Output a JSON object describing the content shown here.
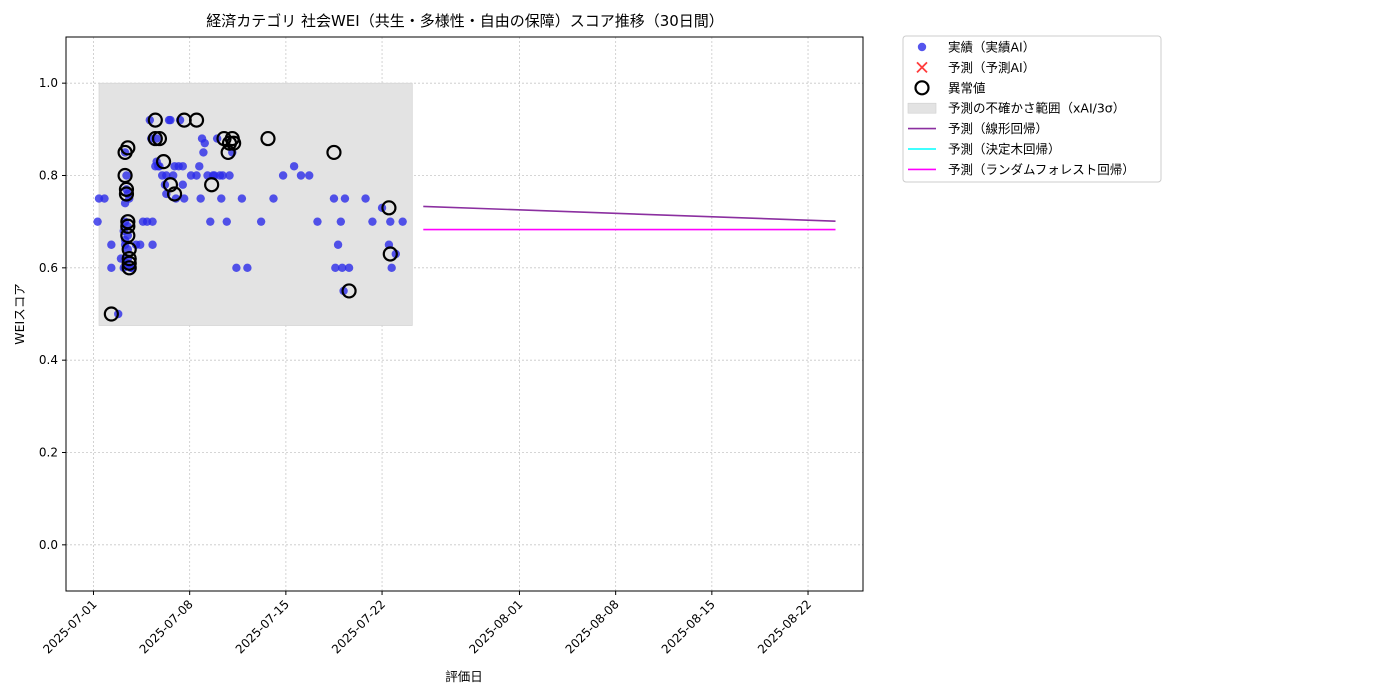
{
  "chart_data": {
    "type": "scatter",
    "title": "経済カテゴリ 社会WEI（共生・多様性・自由の保障）スコア推移（30日間）",
    "xlabel": "評価日",
    "ylabel": "WEIスコア",
    "xlim": [
      "2025-06-29",
      "2025-08-26"
    ],
    "ylim": [
      -0.1,
      1.1
    ],
    "yticks": [
      0.0,
      0.2,
      0.4,
      0.6,
      0.8,
      1.0
    ],
    "ytick_labels": [
      "0.0",
      "0.2",
      "0.4",
      "0.6",
      "0.8",
      "1.0"
    ],
    "xticks": [
      "2025-07-01",
      "2025-07-08",
      "2025-07-15",
      "2025-07-22",
      "2025-08-01",
      "2025-08-08",
      "2025-08-15",
      "2025-08-22"
    ],
    "grid": true,
    "legend_position": "outside-top-right",
    "legend": [
      {
        "label": "実績（実績AI）",
        "kind": "dot",
        "color": "#2b2be8"
      },
      {
        "label": "予測（予測AI）",
        "kind": "x",
        "color": "#ff3b3b"
      },
      {
        "label": "異常値",
        "kind": "ring",
        "color": "#000000"
      },
      {
        "label": "予測の不確かさ範囲（xAI/3σ）",
        "kind": "band",
        "color": "#d9d9d9"
      },
      {
        "label": "予測（線形回帰）",
        "kind": "line",
        "color": "#8b2fa0"
      },
      {
        "label": "予測（決定木回帰）",
        "kind": "line",
        "color": "#00ffff"
      },
      {
        "label": "予測（ランダムフォレスト回帰）",
        "kind": "line",
        "color": "#ff00ff"
      }
    ],
    "uncertainty_band": {
      "x_start": "2025-07-01.4",
      "x_end": "2025-07-24.2",
      "y_low": 0.475,
      "y_high": 1.0
    },
    "series": [
      {
        "name": "実績（実績AI）",
        "color": "#2b2be8",
        "x": [
          1.3,
          1.4,
          1.8,
          2.3,
          2.3,
          2.8,
          3.0,
          3.2,
          3.2,
          3.3,
          3.3,
          3.3,
          3.3,
          3.3,
          3.4,
          3.4,
          3.4,
          3.5,
          3.5,
          3.5,
          3.5,
          3.5,
          3.6,
          3.7,
          3.8,
          4.1,
          4.4,
          4.6,
          4.9,
          5.1,
          5.2,
          5.3,
          5.3,
          5.5,
          5.6,
          5.6,
          5.7,
          5.8,
          6.0,
          6.2,
          6.3,
          6.3,
          6.5,
          6.6,
          6.8,
          6.9,
          7.0,
          7.2,
          7.3,
          7.5,
          7.5,
          7.6,
          8.1,
          8.5,
          8.7,
          8.8,
          8.9,
          9.0,
          9.1,
          9.3,
          9.5,
          9.7,
          9.8,
          10.0,
          10.2,
          10.3,
          10.4,
          10.7,
          10.9,
          11.1,
          11.4,
          11.8,
          12.2,
          13.2,
          14.1,
          14.8,
          15.6,
          16.1,
          16.7,
          17.3,
          18.5,
          18.6,
          18.8,
          19.0,
          19.1,
          19.2,
          19.3,
          19.6,
          20.8,
          21.3,
          22.0,
          22.5,
          22.6,
          22.7,
          23.0,
          23.5
        ],
        "y": [
          0.7,
          0.75,
          0.75,
          0.65,
          0.6,
          0.5,
          0.62,
          0.6,
          0.68,
          0.85,
          0.74,
          0.7,
          0.66,
          0.65,
          0.61,
          0.8,
          0.77,
          0.76,
          0.69,
          0.67,
          0.64,
          0.62,
          0.75,
          0.6,
          0.6,
          0.65,
          0.65,
          0.7,
          0.7,
          0.92,
          0.88,
          0.7,
          0.65,
          0.82,
          0.88,
          0.83,
          0.82,
          0.82,
          0.8,
          0.78,
          0.76,
          0.8,
          0.92,
          0.92,
          0.8,
          0.82,
          0.75,
          0.82,
          0.92,
          0.82,
          0.78,
          0.75,
          0.8,
          0.8,
          0.82,
          0.75,
          0.88,
          0.85,
          0.87,
          0.8,
          0.7,
          0.8,
          0.8,
          0.88,
          0.8,
          0.75,
          0.8,
          0.7,
          0.8,
          0.85,
          0.6,
          0.75,
          0.6,
          0.7,
          0.75,
          0.8,
          0.82,
          0.8,
          0.8,
          0.7,
          0.75,
          0.6,
          0.65,
          0.7,
          0.6,
          0.55,
          0.75,
          0.6,
          0.75,
          0.7,
          0.73,
          0.65,
          0.7,
          0.6,
          0.63,
          0.7
        ]
      },
      {
        "name": "異常値",
        "color": "#000000",
        "x": [
          2.3,
          3.3,
          3.3,
          3.4,
          3.4,
          3.5,
          3.5,
          3.5,
          3.5,
          3.6,
          3.6,
          3.6,
          3.6,
          5.5,
          5.5,
          5.8,
          6.1,
          6.6,
          6.9,
          7.6,
          8.5,
          9.6,
          10.5,
          10.8,
          10.9,
          11.1,
          11.2,
          13.7,
          18.5,
          19.6,
          22.5,
          22.6
        ],
        "y": [
          0.5,
          0.85,
          0.8,
          0.77,
          0.76,
          0.86,
          0.7,
          0.69,
          0.67,
          0.64,
          0.62,
          0.61,
          0.6,
          0.92,
          0.88,
          0.88,
          0.83,
          0.78,
          0.76,
          0.92,
          0.92,
          0.78,
          0.88,
          0.85,
          0.87,
          0.88,
          0.87,
          0.88,
          0.85,
          0.55,
          0.73,
          0.63
        ]
      },
      {
        "name": "予測（線形回帰）",
        "color": "#8b2fa0",
        "x": [
          "2025-07-25",
          "2025-08-24"
        ],
        "y": [
          0.733,
          0.701
        ]
      },
      {
        "name": "予測（ランダムフォレスト回帰）",
        "color": "#ff00ff",
        "x": [
          "2025-07-25",
          "2025-08-24"
        ],
        "y": [
          0.683,
          0.683
        ]
      }
    ]
  }
}
